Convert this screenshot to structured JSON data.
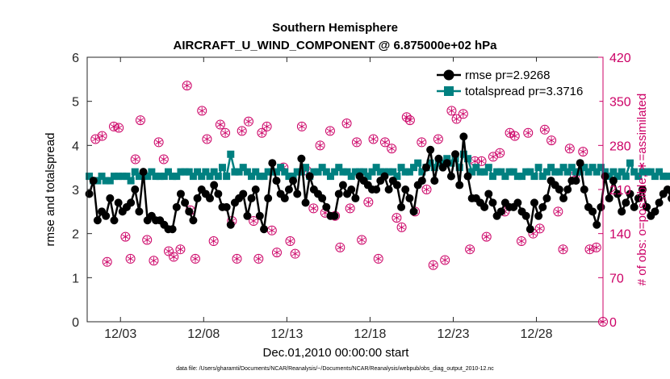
{
  "chart_data": {
    "type": "line",
    "title": "Southern Hemisphere",
    "subtitle": "AIRCRAFT_U_WIND_COMPONENT @ 6.875000e+02 hPa",
    "xlabel": "Dec.01,2010 00:00:00 start",
    "ylabel": "rmse and totalspread",
    "y2label": "# of obs: o=possible; ∗=assimilated",
    "footer": "data file: /Users/gharamti/Documents/NCAR/Reanalysis/~/Documents/NCAR/Reanalysis/webpub/obs_diag_output_2010-12.nc",
    "xlim": [
      1.0,
      32.0
    ],
    "ylim": [
      0,
      6
    ],
    "y2lim": [
      0,
      420
    ],
    "xticks": [
      3,
      8,
      13,
      18,
      23,
      28
    ],
    "xticklabels": [
      "12/03",
      "12/08",
      "12/13",
      "12/18",
      "12/23",
      "12/28"
    ],
    "yticks": [
      0,
      1,
      2,
      3,
      4,
      5,
      6
    ],
    "y2ticks": [
      0,
      70,
      140,
      210,
      280,
      350,
      420
    ],
    "legend_position": "top-right",
    "colors": {
      "rmse": "#000000",
      "spread": "#008080",
      "obs": "#cc0066"
    },
    "series": [
      {
        "name": "rmse pr=2.9268",
        "key": "rmse",
        "values": [
          2.9,
          3.2,
          2.3,
          2.5,
          2.4,
          2.8,
          2.3,
          2.7,
          2.5,
          2.6,
          2.7,
          3.0,
          2.5,
          3.4,
          2.3,
          2.4,
          2.3,
          2.3,
          2.2,
          2.1,
          2.1,
          2.6,
          2.9,
          2.7,
          2.5,
          2.3,
          2.8,
          3.0,
          2.9,
          2.8,
          3.1,
          2.9,
          2.6,
          2.6,
          2.2,
          2.7,
          2.8,
          2.9,
          2.4,
          2.8,
          3.0,
          2.4,
          2.1,
          2.8,
          3.6,
          3.2,
          2.9,
          2.8,
          3.0,
          3.2,
          2.9,
          3.7,
          2.7,
          3.3,
          3.0,
          2.9,
          2.8,
          2.6,
          2.4,
          2.4,
          2.9,
          3.1,
          2.9,
          3.0,
          2.8,
          3.3,
          3.2,
          3.1,
          3.0,
          3.0,
          3.2,
          3.3,
          3.0,
          3.2,
          3.1,
          2.6,
          3.0,
          2.8,
          2.5,
          3.1,
          3.2,
          3.5,
          3.9,
          3.2,
          3.7,
          3.5,
          3.6,
          3.3,
          3.8,
          3.1,
          4.2,
          3.3,
          2.8,
          2.8,
          2.7,
          2.6,
          2.9,
          2.7,
          2.4,
          2.5,
          2.7,
          2.6,
          2.6,
          2.7,
          2.5,
          2.4,
          2.1,
          2.7,
          2.4,
          2.6,
          2.8,
          3.2,
          3.1,
          3.0,
          2.8,
          3.0,
          3.2,
          3.2,
          3.6,
          3.0,
          2.6,
          2.5,
          2.2,
          2.6,
          3.3,
          2.8,
          3.2,
          2.9,
          2.5,
          2.7,
          2.9,
          2.6,
          2.8,
          3.0,
          2.6,
          2.4,
          2.5,
          2.7,
          2.9,
          3.0,
          2.8,
          3.4
        ]
      },
      {
        "name": "totalspread pr=3.3716",
        "key": "spread",
        "values": [
          3.3,
          3.2,
          3.2,
          3.3,
          3.2,
          3.2,
          3.3,
          3.3,
          3.3,
          3.3,
          3.2,
          3.4,
          3.3,
          3.3,
          3.3,
          3.4,
          3.3,
          3.3,
          3.3,
          3.4,
          3.3,
          3.3,
          3.4,
          3.4,
          3.4,
          3.3,
          3.4,
          3.3,
          3.4,
          3.3,
          3.4,
          3.3,
          3.5,
          3.3,
          3.8,
          3.4,
          3.4,
          3.5,
          3.4,
          3.3,
          3.4,
          3.3,
          3.3,
          3.4,
          3.4,
          3.4,
          3.5,
          3.4,
          3.3,
          3.3,
          3.4,
          3.4,
          3.5,
          3.3,
          3.4,
          3.4,
          3.5,
          3.4,
          3.3,
          3.4,
          3.5,
          3.4,
          3.4,
          3.3,
          3.4,
          3.4,
          3.4,
          3.3,
          3.4,
          3.5,
          3.4,
          3.4,
          3.4,
          3.4,
          3.3,
          3.5,
          3.4,
          3.4,
          3.5,
          3.6,
          3.4,
          3.5,
          3.6,
          3.5,
          3.6,
          3.6,
          3.7,
          3.6,
          3.7,
          3.5,
          3.8,
          3.7,
          3.4,
          3.5,
          3.4,
          3.4,
          3.5,
          3.3,
          3.4,
          3.4,
          3.3,
          3.4,
          3.4,
          3.3,
          3.3,
          3.4,
          3.4,
          3.3,
          3.5,
          3.3,
          3.4,
          3.5,
          3.4,
          3.4,
          3.5,
          3.4,
          3.5,
          3.4,
          3.4,
          3.5,
          3.4,
          3.5,
          3.4,
          3.5,
          3.4,
          3.3,
          3.4,
          3.3,
          3.4,
          3.3,
          3.6,
          3.4,
          3.3,
          3.4,
          3.4,
          3.4,
          3.3,
          3.4,
          3.3,
          3.3
        ]
      }
    ],
    "obs_possible": [
      {
        "x": 1.5,
        "y": 290
      },
      {
        "x": 1.9,
        "y": 295
      },
      {
        "x": 2.2,
        "y": 95
      },
      {
        "x": 2.6,
        "y": 310
      },
      {
        "x": 2.9,
        "y": 308
      },
      {
        "x": 3.3,
        "y": 135
      },
      {
        "x": 3.6,
        "y": 100
      },
      {
        "x": 3.9,
        "y": 258
      },
      {
        "x": 4.2,
        "y": 320
      },
      {
        "x": 4.6,
        "y": 130
      },
      {
        "x": 5.0,
        "y": 97
      },
      {
        "x": 5.3,
        "y": 285
      },
      {
        "x": 5.6,
        "y": 258
      },
      {
        "x": 5.9,
        "y": 112
      },
      {
        "x": 6.2,
        "y": 103
      },
      {
        "x": 6.6,
        "y": 115
      },
      {
        "x": 7.0,
        "y": 375
      },
      {
        "x": 7.2,
        "y": 177
      },
      {
        "x": 7.5,
        "y": 100
      },
      {
        "x": 7.9,
        "y": 335
      },
      {
        "x": 8.2,
        "y": 290
      },
      {
        "x": 8.6,
        "y": 128
      },
      {
        "x": 9.0,
        "y": 313
      },
      {
        "x": 9.3,
        "y": 300
      },
      {
        "x": 9.7,
        "y": 160
      },
      {
        "x": 10.0,
        "y": 100
      },
      {
        "x": 10.3,
        "y": 303
      },
      {
        "x": 10.7,
        "y": 318
      },
      {
        "x": 11.0,
        "y": 160
      },
      {
        "x": 11.3,
        "y": 100
      },
      {
        "x": 11.5,
        "y": 300
      },
      {
        "x": 11.8,
        "y": 310
      },
      {
        "x": 12.1,
        "y": 145
      },
      {
        "x": 12.4,
        "y": 110
      },
      {
        "x": 12.8,
        "y": 245
      },
      {
        "x": 13.2,
        "y": 128
      },
      {
        "x": 13.5,
        "y": 108
      },
      {
        "x": 13.9,
        "y": 310
      },
      {
        "x": 14.2,
        "y": 240
      },
      {
        "x": 14.6,
        "y": 180
      },
      {
        "x": 15.0,
        "y": 280
      },
      {
        "x": 15.3,
        "y": 173
      },
      {
        "x": 15.6,
        "y": 303
      },
      {
        "x": 15.9,
        "y": 168
      },
      {
        "x": 16.2,
        "y": 118
      },
      {
        "x": 16.6,
        "y": 315
      },
      {
        "x": 16.8,
        "y": 180
      },
      {
        "x": 17.2,
        "y": 285
      },
      {
        "x": 17.5,
        "y": 130
      },
      {
        "x": 17.9,
        "y": 190
      },
      {
        "x": 18.2,
        "y": 290
      },
      {
        "x": 18.5,
        "y": 100
      },
      {
        "x": 18.9,
        "y": 285
      },
      {
        "x": 19.3,
        "y": 275
      },
      {
        "x": 19.6,
        "y": 165
      },
      {
        "x": 19.9,
        "y": 150
      },
      {
        "x": 20.2,
        "y": 325
      },
      {
        "x": 20.4,
        "y": 320
      },
      {
        "x": 20.7,
        "y": 175
      },
      {
        "x": 21.1,
        "y": 285
      },
      {
        "x": 21.4,
        "y": 210
      },
      {
        "x": 21.8,
        "y": 90
      },
      {
        "x": 22.1,
        "y": 290
      },
      {
        "x": 22.5,
        "y": 98
      },
      {
        "x": 22.9,
        "y": 335
      },
      {
        "x": 23.2,
        "y": 322
      },
      {
        "x": 23.6,
        "y": 330
      },
      {
        "x": 24.0,
        "y": 115
      },
      {
        "x": 24.3,
        "y": 255
      },
      {
        "x": 24.7,
        "y": 255
      },
      {
        "x": 25.0,
        "y": 135
      },
      {
        "x": 25.4,
        "y": 262
      },
      {
        "x": 25.8,
        "y": 268
      },
      {
        "x": 26.1,
        "y": 175
      },
      {
        "x": 26.4,
        "y": 300
      },
      {
        "x": 26.7,
        "y": 295
      },
      {
        "x": 27.1,
        "y": 128
      },
      {
        "x": 27.5,
        "y": 300
      },
      {
        "x": 27.8,
        "y": 140
      },
      {
        "x": 28.2,
        "y": 148
      },
      {
        "x": 28.5,
        "y": 305
      },
      {
        "x": 28.9,
        "y": 288
      },
      {
        "x": 29.3,
        "y": 175
      },
      {
        "x": 29.6,
        "y": 115
      },
      {
        "x": 30.0,
        "y": 275
      },
      {
        "x": 30.3,
        "y": 232
      },
      {
        "x": 30.8,
        "y": 270
      },
      {
        "x": 31.2,
        "y": 115
      },
      {
        "x": 31.6,
        "y": 118
      },
      {
        "x": 32.0,
        "y": 0
      }
    ]
  }
}
